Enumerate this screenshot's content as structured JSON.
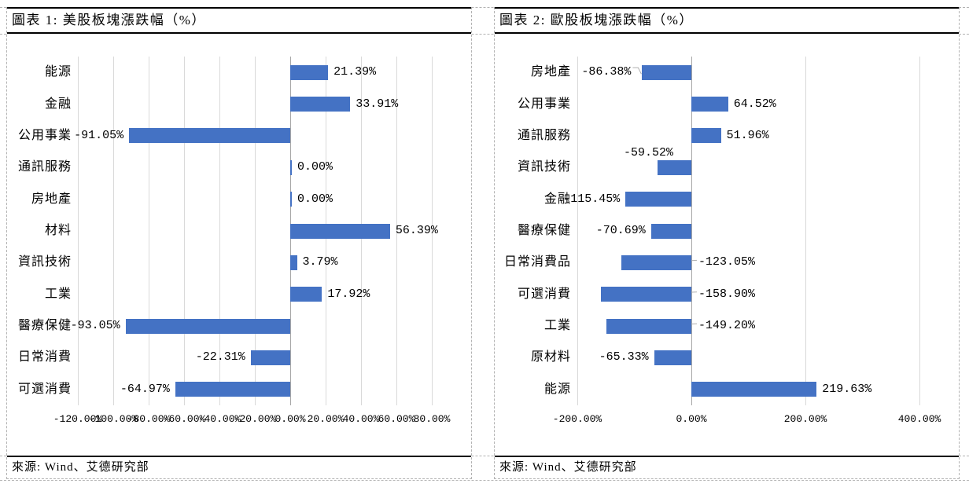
{
  "colors": {
    "bar": "#4472C4",
    "gridline": "#D9D9D9",
    "zero_axis": "#A6A6A6",
    "leader_line": "#AFAFAF",
    "solid_border": "#000000",
    "dashed_border": "#B3B3B3",
    "background": "#FFFFFF"
  },
  "chart_data": [
    {
      "type": "bar",
      "orientation": "horizontal",
      "title": "圖表 1: 美股板塊漲跌幅（%）",
      "source": "來源: Wind、艾德研究部",
      "categories": [
        "能源",
        "金融",
        "公用事業",
        "通訊服務",
        "房地產",
        "材料",
        "資訊技術",
        "工業",
        "醫療保健",
        "日常消費",
        "可選消費"
      ],
      "values": [
        21.39,
        33.91,
        -91.05,
        0,
        0,
        56.39,
        3.79,
        17.92,
        -93.05,
        -22.31,
        -64.97
      ],
      "data_labels": [
        "21.39%",
        "33.91%",
        "-91.05%",
        "0.00%",
        "0.00%",
        "56.39%",
        "3.79%",
        "17.92%",
        "-93.05%",
        "-22.31%",
        "-64.97%"
      ],
      "xlim": [
        -120,
        80
      ],
      "tick_step": 20,
      "tick_labels": [
        "-120.00%",
        "-100.00%",
        "-80.00%",
        "-60.00%",
        "-40.00%",
        "-20.00%",
        "0.00%",
        "20.00%",
        "40.00%",
        "60.00%",
        "80.00%"
      ],
      "grid": true,
      "legend": false,
      "label_placement": {}
    },
    {
      "type": "bar",
      "orientation": "horizontal",
      "title": "圖表 2: 歐股板塊漲跌幅（%）",
      "source": "來源: Wind、艾德研究部",
      "categories": [
        "房地產",
        "公用事業",
        "通訊服務",
        "資訊技術",
        "金融",
        "醫療保健",
        "日常消費品",
        "可選消費",
        "工業",
        "原材料",
        "能源"
      ],
      "values": [
        -86.38,
        64.52,
        51.96,
        -59.52,
        -115.45,
        -70.69,
        -123.05,
        -158.9,
        -149.2,
        -65.33,
        219.63
      ],
      "data_labels": [
        "-86.38%",
        "64.52%",
        "51.96%",
        "-59.52%",
        "-115.45%",
        "-70.69%",
        "-123.05%",
        "-158.90%",
        "-149.20%",
        "-65.33%",
        "219.63%"
      ],
      "xlim": [
        -200,
        400
      ],
      "tick_step": 200,
      "tick_labels": [
        "-200.00%",
        "0.00%",
        "200.00%",
        "400.00%"
      ],
      "grid": true,
      "legend": false,
      "label_placement": {
        "0": "leader-left",
        "3": "above",
        "6": "leader-right",
        "7": "leader-right",
        "8": "leader-right"
      }
    }
  ]
}
